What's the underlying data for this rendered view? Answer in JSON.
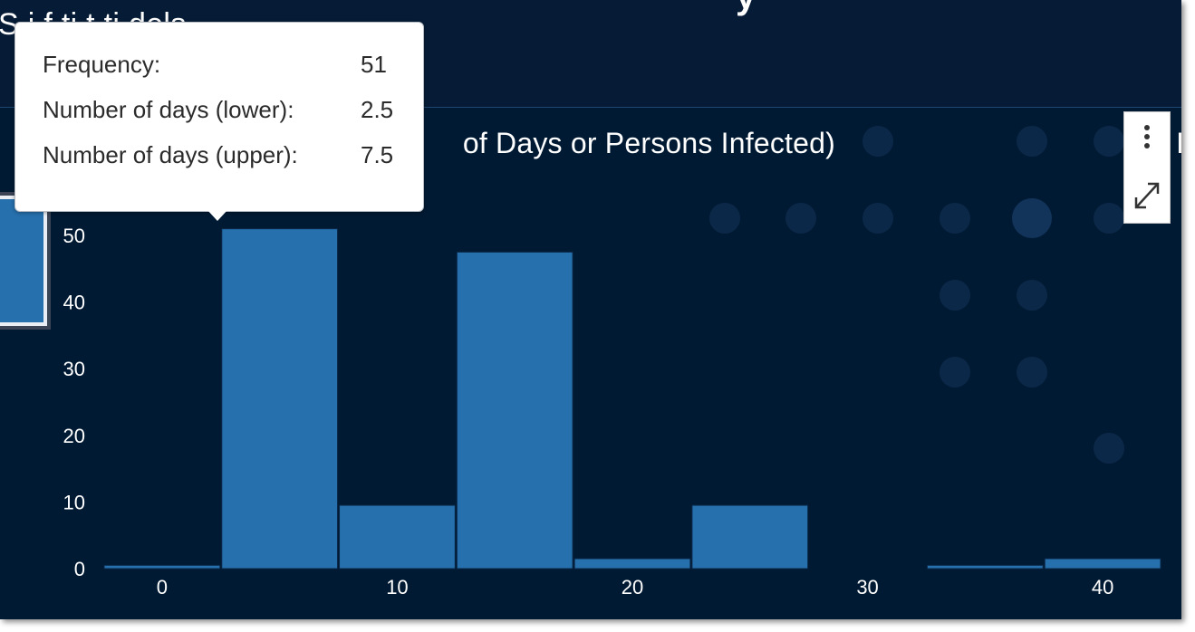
{
  "header": {
    "subtitle_visible": "S  i  f        ti        t   ti            dels",
    "title_visible_fragment": "y"
  },
  "chart_title_visible": "of Days or Persons Infected)",
  "right_edge_char": "I",
  "tooltip": {
    "rows": [
      {
        "label": "Frequency:",
        "value": "51"
      },
      {
        "label": "Number of days (lower):",
        "value": "2.5"
      },
      {
        "label": "Number of days (upper):",
        "value": "7.5"
      }
    ]
  },
  "toolbar": {
    "menu_icon": "vertical-ellipsis-icon",
    "expand_icon": "expand-arrows-icon"
  },
  "colors": {
    "background": "#001a33",
    "header": "#061c36",
    "bar": "#2670ad",
    "text": "#ffffff",
    "tooltip_bg": "#ffffff"
  },
  "chart_data": {
    "type": "bar",
    "subtype": "histogram",
    "title": "of Days or Persons Infected)",
    "xlabel": "",
    "ylabel": "",
    "bin_width": 5,
    "bins": [
      {
        "lower": -2.5,
        "upper": 2.5,
        "frequency": 0.5
      },
      {
        "lower": 2.5,
        "upper": 7.5,
        "frequency": 51
      },
      {
        "lower": 7.5,
        "upper": 12.5,
        "frequency": 9.5
      },
      {
        "lower": 12.5,
        "upper": 17.5,
        "frequency": 47.5
      },
      {
        "lower": 17.5,
        "upper": 22.5,
        "frequency": 1.5
      },
      {
        "lower": 22.5,
        "upper": 27.5,
        "frequency": 9.5
      },
      {
        "lower": 27.5,
        "upper": 32.5,
        "frequency": 0
      },
      {
        "lower": 32.5,
        "upper": 37.5,
        "frequency": 0.5
      },
      {
        "lower": 37.5,
        "upper": 42.5,
        "frequency": 1.5
      }
    ],
    "xlim": [
      -2.5,
      42.5
    ],
    "ylim": [
      0,
      55
    ],
    "x_ticks": [
      0,
      10,
      20,
      30,
      40
    ],
    "y_ticks": [
      0,
      10,
      20,
      30,
      40,
      50
    ],
    "grid": false,
    "legend": "left"
  }
}
